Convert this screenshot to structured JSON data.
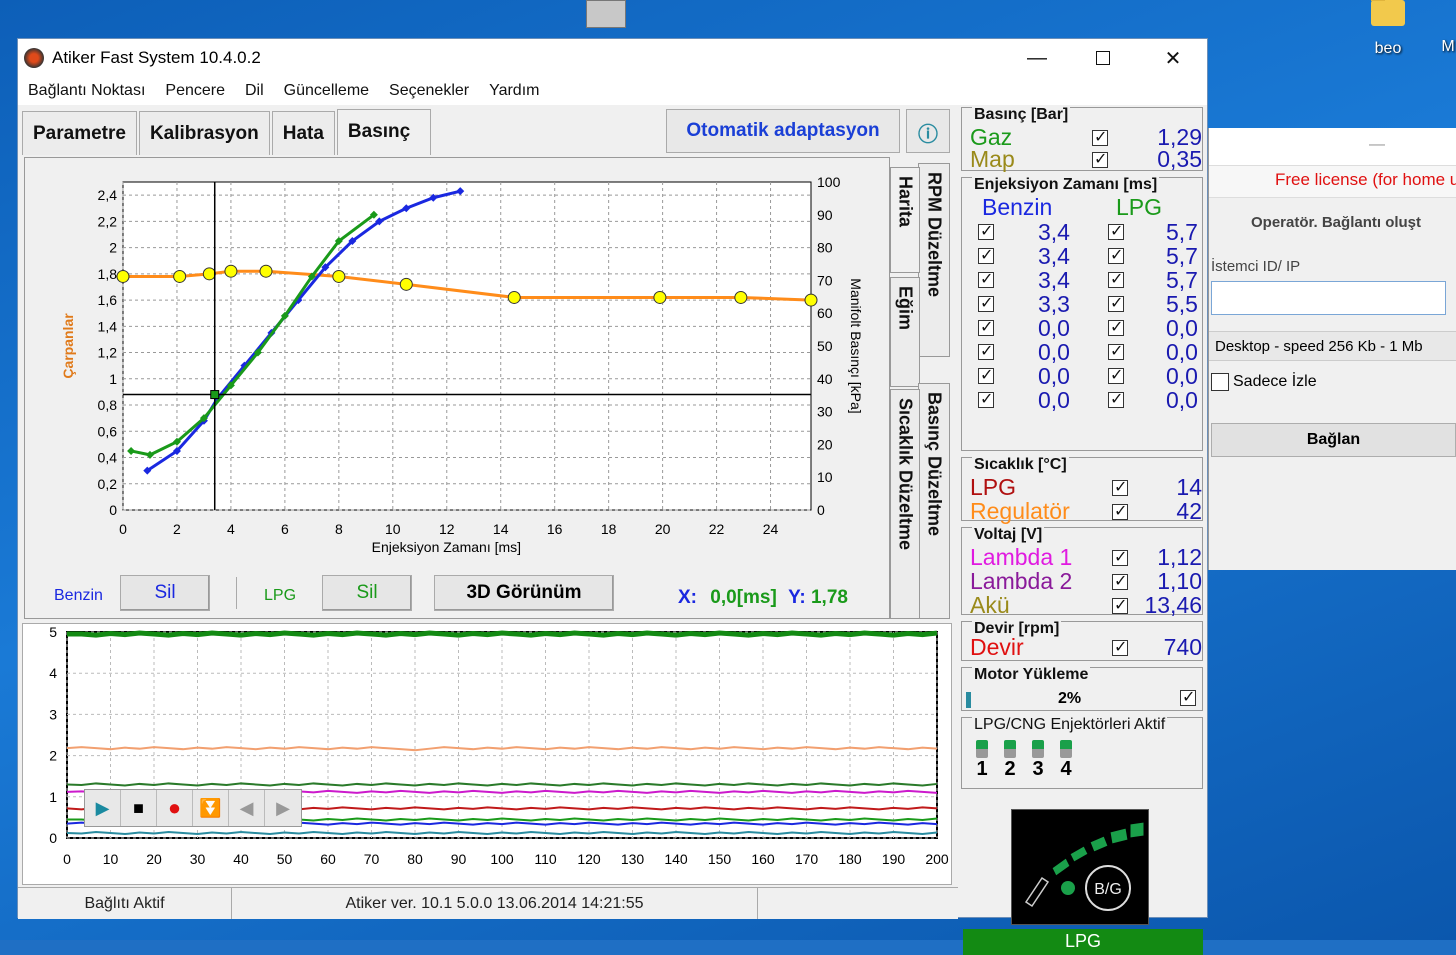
{
  "desktop": {
    "icons": [
      {
        "label": ""
      },
      {
        "label": "beo"
      },
      {
        "label": "M"
      }
    ]
  },
  "window2": {
    "license": "Free license (for home u",
    "operator": "Operatör. Bağlantı oluşt",
    "id_label": "İstemci ID/ IP",
    "speed": "Desktop - speed  256 Kb - 1 Mb",
    "watch_only": "Sadece İzle",
    "connect": "Bağlan"
  },
  "window": {
    "title": "Atiker Fast System  10.4.0.2",
    "menu": [
      "Bağlantı Noktası",
      "Pencere",
      "Dil",
      "Güncelleme",
      "Seçenekler",
      "Yardım"
    ],
    "tabs": [
      "Parametre",
      "Kalibrasyon",
      "Hata",
      "Basınç"
    ],
    "auto_adapt": "Otomatik adaptasyon",
    "vtabs": [
      "RPM Düzeltme",
      "Harita",
      "Eğim",
      "Basınç Düzeltme",
      "Sıcaklık Düzeltme"
    ],
    "buttons": {
      "benzin": "Benzin",
      "sil1": "Sil",
      "lpg": "LPG",
      "sil2": "Sil",
      "view3d": "3D Görünüm"
    },
    "xy": {
      "x_label": "X:",
      "x_val": "0,0[ms]",
      "y_label": "Y:",
      "y_val": "1,78"
    },
    "status": {
      "left": "Bağlıtı Aktif",
      "mid": "Atiker   ver. 10.1  5.0.0    13.06.2014 14:21:55"
    }
  },
  "right": {
    "pressure": {
      "title": "Basınç [Bar]",
      "gaz": {
        "name": "Gaz",
        "val": "1,29"
      },
      "map": {
        "name": "Map",
        "val": "0,35"
      }
    },
    "injection": {
      "title": "Enjeksiyon Zamanı [ms]",
      "col1": "Benzin",
      "col2": "LPG",
      "rows": [
        [
          "3,4",
          "5,7"
        ],
        [
          "3,4",
          "5,7"
        ],
        [
          "3,4",
          "5,7"
        ],
        [
          "3,3",
          "5,5"
        ],
        [
          "0,0",
          "0,0"
        ],
        [
          "0,0",
          "0,0"
        ],
        [
          "0,0",
          "0,0"
        ],
        [
          "0,0",
          "0,0"
        ]
      ]
    },
    "temp": {
      "title": "Sıcaklık  [°C]",
      "lpg": {
        "name": "LPG",
        "val": "14"
      },
      "reg": {
        "name": "Regulatör",
        "val": "42"
      }
    },
    "voltage": {
      "title": "Voltaj [V]",
      "l1": {
        "name": "Lambda 1",
        "val": "1,12"
      },
      "l2": {
        "name": "Lambda 2",
        "val": "1,10"
      },
      "aku": {
        "name": "Akü",
        "val": "13,46"
      }
    },
    "rpm": {
      "title": "Devir [rpm]",
      "name": "Devir",
      "val": "740"
    },
    "load": {
      "title": "Motor Yükleme",
      "val": "2%",
      "level": 0.02
    },
    "injectors": {
      "title": "LPG/CNG Enjektörleri Aktif",
      "nums": [
        "1",
        "2",
        "3",
        "4"
      ]
    },
    "gauge_label": "B/G",
    "fuel": "LPG"
  },
  "chart_data": [
    {
      "type": "line",
      "title": "",
      "xlabel": "Enjeksiyon Zamanı [ms]",
      "ylabel": "Çarpanlar",
      "y2label": "Manifolt Basınçı [kPa]",
      "xlim": [
        0,
        25.5
      ],
      "ylim": [
        0,
        2.5
      ],
      "y2lim": [
        0,
        100
      ],
      "xticks": [
        "0",
        "2",
        "4",
        "6",
        "8",
        "10",
        "12",
        "14",
        "16",
        "18",
        "20",
        "22",
        "24"
      ],
      "yticks": [
        "0",
        "0,2",
        "0,4",
        "0,6",
        "0,8",
        "1",
        "1,2",
        "1,4",
        "1,6",
        "1,8",
        "2",
        "2,2",
        "2,4"
      ],
      "y2ticks": [
        "0",
        "10",
        "20",
        "30",
        "40",
        "50",
        "60",
        "70",
        "80",
        "90",
        "100"
      ],
      "series": [
        {
          "color": "#ff8c1a",
          "x": [
            0,
            2.1,
            3.2,
            4,
            5.3,
            8,
            10.5,
            14.5,
            19.9,
            22.9,
            25.5
          ],
          "y": [
            1.78,
            1.78,
            1.8,
            1.82,
            1.82,
            1.78,
            1.72,
            1.62,
            1.62,
            1.62,
            1.6
          ]
        },
        {
          "color": "#1a28e0",
          "x": [
            0.9,
            2,
            3,
            3.5,
            4.5,
            5.5,
            6.5,
            7.5,
            8.5,
            9.5,
            10.5,
            11.5,
            12.5
          ],
          "y": [
            0.3,
            0.45,
            0.68,
            0.85,
            1.1,
            1.35,
            1.6,
            1.85,
            2.05,
            2.2,
            2.3,
            2.38,
            2.43
          ]
        },
        {
          "color": "#1a9a1a",
          "x": [
            0.3,
            1,
            2,
            3,
            4,
            5,
            6,
            7,
            8,
            9.3
          ],
          "y": [
            0.45,
            0.42,
            0.52,
            0.7,
            0.95,
            1.2,
            1.48,
            1.78,
            2.05,
            2.25
          ]
        }
      ],
      "crosshair": {
        "x": 3.4,
        "y": 0.88
      }
    },
    {
      "type": "line",
      "xlim": [
        0,
        200
      ],
      "ylim": [
        0,
        5
      ],
      "xticks": [
        "0",
        "10",
        "20",
        "30",
        "40",
        "50",
        "60",
        "70",
        "80",
        "90",
        "100",
        "110",
        "120",
        "130",
        "140",
        "150",
        "160",
        "170",
        "180",
        "190",
        "200"
      ],
      "yticks": [
        "0",
        "1",
        "2",
        "3",
        "4",
        "5"
      ],
      "series": [
        {
          "color": "#138a13",
          "y": 4.95
        },
        {
          "color": "#f2a070",
          "y": 2.18
        },
        {
          "color": "#2a7a2a",
          "y": 1.3
        },
        {
          "color": "#cc1acc",
          "y": 1.12
        },
        {
          "color": "#c01a1a",
          "y": 0.72
        },
        {
          "color": "#1a9a1a",
          "y": 0.45
        },
        {
          "color": "#1a28e0",
          "y": 0.35
        },
        {
          "color": "#2a8ca0",
          "y": 0.12
        }
      ]
    }
  ]
}
